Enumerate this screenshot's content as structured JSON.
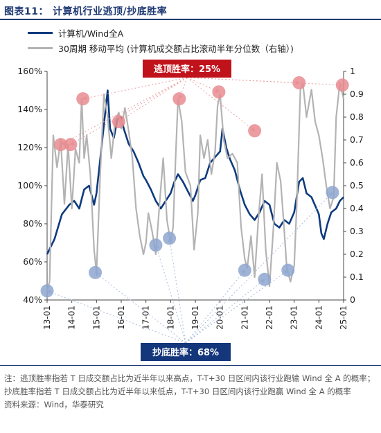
{
  "figure": {
    "label": "图表11：",
    "title": "计算机行业逃顶/抄底胜率",
    "note": "注：逃顶胜率指若 T 日成交额占比为近半年以来高点，T-T+30 日区间内该行业跑输 Wind 全 A 的概率；抄底胜率指若 T 日成交额占比为近半年以来低点，T-T+30 日区间内该行业跑赢 Wind 全 A 的概率",
    "source": "资料来源：Wind，华泰研究"
  },
  "chart_data": {
    "type": "line",
    "x_ticks": [
      "13-01",
      "14-01",
      "15-01",
      "16-01",
      "17-01",
      "18-01",
      "19-01",
      "20-01",
      "21-01",
      "22-01",
      "23-01",
      "24-01",
      "25-01"
    ],
    "y_left": {
      "min": 0.4,
      "max": 1.6,
      "ticks": [
        "40%",
        "60%",
        "80%",
        "100%",
        "120%",
        "140%",
        "160%"
      ]
    },
    "y_right": {
      "min": 0,
      "max": 1,
      "ticks": [
        "0",
        "0.1",
        "0.2",
        "0.3",
        "0.4",
        "0.5",
        "0.6",
        "0.7",
        "0.8",
        "0.9",
        "1"
      ]
    },
    "series": [
      {
        "name": "计算机/Wind全A",
        "axis": "left",
        "color": "#0d3a7e",
        "points": [
          [
            2013.0,
            0.64
          ],
          [
            2013.3,
            0.72
          ],
          [
            2013.6,
            0.85
          ],
          [
            2013.9,
            0.9
          ],
          [
            2014.1,
            0.92
          ],
          [
            2014.3,
            0.88
          ],
          [
            2014.5,
            0.98
          ],
          [
            2014.7,
            1.0
          ],
          [
            2014.9,
            0.9
          ],
          [
            2015.0,
            0.96
          ],
          [
            2015.2,
            1.2
          ],
          [
            2015.35,
            1.38
          ],
          [
            2015.45,
            1.5
          ],
          [
            2015.55,
            1.3
          ],
          [
            2015.7,
            1.25
          ],
          [
            2015.85,
            1.35
          ],
          [
            2016.0,
            1.36
          ],
          [
            2016.1,
            1.3
          ],
          [
            2016.3,
            1.22
          ],
          [
            2016.5,
            1.18
          ],
          [
            2016.7,
            1.12
          ],
          [
            2016.9,
            1.05
          ],
          [
            2017.0,
            1.03
          ],
          [
            2017.2,
            0.98
          ],
          [
            2017.4,
            0.92
          ],
          [
            2017.6,
            0.88
          ],
          [
            2017.8,
            0.92
          ],
          [
            2018.0,
            0.96
          ],
          [
            2018.15,
            1.02
          ],
          [
            2018.3,
            1.06
          ],
          [
            2018.5,
            1.02
          ],
          [
            2018.7,
            0.97
          ],
          [
            2018.9,
            0.92
          ],
          [
            2019.0,
            0.95
          ],
          [
            2019.2,
            1.03
          ],
          [
            2019.4,
            1.04
          ],
          [
            2019.6,
            1.12
          ],
          [
            2019.8,
            1.15
          ],
          [
            2020.0,
            1.18
          ],
          [
            2020.1,
            1.3
          ],
          [
            2020.25,
            1.2
          ],
          [
            2020.4,
            1.14
          ],
          [
            2020.6,
            1.08
          ],
          [
            2020.8,
            0.98
          ],
          [
            2021.0,
            0.9
          ],
          [
            2021.2,
            0.85
          ],
          [
            2021.4,
            0.82
          ],
          [
            2021.6,
            0.86
          ],
          [
            2021.8,
            0.92
          ],
          [
            2022.0,
            0.9
          ],
          [
            2022.2,
            0.8
          ],
          [
            2022.4,
            0.78
          ],
          [
            2022.6,
            0.82
          ],
          [
            2022.8,
            0.8
          ],
          [
            2023.0,
            0.86
          ],
          [
            2023.2,
            1.02
          ],
          [
            2023.35,
            1.04
          ],
          [
            2023.5,
            0.96
          ],
          [
            2023.7,
            0.94
          ],
          [
            2023.9,
            0.88
          ],
          [
            2024.0,
            0.85
          ],
          [
            2024.1,
            0.75
          ],
          [
            2024.2,
            0.72
          ],
          [
            2024.35,
            0.8
          ],
          [
            2024.5,
            0.86
          ],
          [
            2024.7,
            0.88
          ],
          [
            2024.85,
            0.92
          ],
          [
            2025.0,
            0.94
          ]
        ]
      },
      {
        "name": "30周期 移动平均 (计算机成交额占比滚动半年分位数（右轴）)",
        "axis": "right",
        "color": "#b3b3b3",
        "points": [
          [
            2013.0,
            0.04
          ],
          [
            2013.1,
            0.08
          ],
          [
            2013.25,
            0.72
          ],
          [
            2013.4,
            0.58
          ],
          [
            2013.55,
            0.7
          ],
          [
            2013.7,
            0.42
          ],
          [
            2013.85,
            0.68
          ],
          [
            2014.0,
            0.4
          ],
          [
            2014.15,
            0.66
          ],
          [
            2014.3,
            0.6
          ],
          [
            2014.4,
            0.88
          ],
          [
            2014.5,
            0.62
          ],
          [
            2014.6,
            0.72
          ],
          [
            2014.75,
            0.55
          ],
          [
            2014.9,
            0.22
          ],
          [
            2015.0,
            0.12
          ],
          [
            2015.15,
            0.55
          ],
          [
            2015.3,
            0.9
          ],
          [
            2015.45,
            0.8
          ],
          [
            2015.6,
            0.62
          ],
          [
            2015.75,
            0.78
          ],
          [
            2015.9,
            0.82
          ],
          [
            2016.0,
            0.75
          ],
          [
            2016.15,
            0.84
          ],
          [
            2016.3,
            0.74
          ],
          [
            2016.45,
            0.62
          ],
          [
            2016.6,
            0.4
          ],
          [
            2016.75,
            0.28
          ],
          [
            2016.9,
            0.2
          ],
          [
            2017.0,
            0.25
          ],
          [
            2017.1,
            0.38
          ],
          [
            2017.25,
            0.3
          ],
          [
            2017.4,
            0.2
          ],
          [
            2017.55,
            0.42
          ],
          [
            2017.7,
            0.62
          ],
          [
            2017.85,
            0.35
          ],
          [
            2018.0,
            0.25
          ],
          [
            2018.1,
            0.32
          ],
          [
            2018.2,
            0.62
          ],
          [
            2018.3,
            0.88
          ],
          [
            2018.45,
            0.78
          ],
          [
            2018.6,
            0.56
          ],
          [
            2018.8,
            0.5
          ],
          [
            2018.95,
            0.22
          ],
          [
            2019.1,
            0.38
          ],
          [
            2019.2,
            0.72
          ],
          [
            2019.35,
            0.62
          ],
          [
            2019.5,
            0.7
          ],
          [
            2019.65,
            0.55
          ],
          [
            2019.8,
            0.65
          ],
          [
            2019.9,
            0.85
          ],
          [
            2020.0,
            0.9
          ],
          [
            2020.15,
            0.7
          ],
          [
            2020.3,
            0.62
          ],
          [
            2020.5,
            0.64
          ],
          [
            2020.7,
            0.6
          ],
          [
            2020.85,
            0.32
          ],
          [
            2021.0,
            0.18
          ],
          [
            2021.1,
            0.14
          ],
          [
            2021.25,
            0.28
          ],
          [
            2021.4,
            0.1
          ],
          [
            2021.55,
            0.35
          ],
          [
            2021.7,
            0.55
          ],
          [
            2021.85,
            0.22
          ],
          [
            2022.0,
            0.06
          ],
          [
            2022.15,
            0.3
          ],
          [
            2022.3,
            0.6
          ],
          [
            2022.45,
            0.52
          ],
          [
            2022.55,
            0.38
          ],
          [
            2022.7,
            0.14
          ],
          [
            2022.85,
            0.08
          ],
          [
            2023.0,
            0.15
          ],
          [
            2023.1,
            0.4
          ],
          [
            2023.25,
            0.92
          ],
          [
            2023.35,
            0.95
          ],
          [
            2023.5,
            0.8
          ],
          [
            2023.7,
            0.92
          ],
          [
            2023.85,
            0.78
          ],
          [
            2024.0,
            0.72
          ],
          [
            2024.15,
            0.62
          ],
          [
            2024.3,
            0.5
          ],
          [
            2024.45,
            0.4
          ],
          [
            2024.6,
            0.45
          ],
          [
            2024.7,
            0.8
          ],
          [
            2024.85,
            0.95
          ],
          [
            2025.0,
            0.88
          ]
        ]
      }
    ],
    "top_markers": [
      [
        2013.55,
        0.68
      ],
      [
        2013.95,
        0.68
      ],
      [
        2014.45,
        0.88
      ],
      [
        2015.9,
        0.78
      ],
      [
        2018.35,
        0.88
      ],
      [
        2019.95,
        0.91
      ],
      [
        2021.4,
        0.74
      ],
      [
        2023.2,
        0.95
      ],
      [
        2024.95,
        0.94
      ]
    ],
    "bottom_markers": [
      [
        2013.0,
        0.04
      ],
      [
        2014.95,
        0.12
      ],
      [
        2017.4,
        0.24
      ],
      [
        2017.95,
        0.27
      ],
      [
        2021.0,
        0.13
      ],
      [
        2021.8,
        0.09
      ],
      [
        2022.75,
        0.13
      ],
      [
        2024.55,
        0.47
      ]
    ],
    "annotations": {
      "top": "逃顶胜率：25%",
      "bottom": "抄底胜率：68%"
    },
    "colors": {
      "navy": "#0d3a7e",
      "gray": "#b3b3b3",
      "top_box": "#c0121b",
      "bottom_box": "#14367b",
      "top_marker": "#e88c90",
      "bottom_marker": "#8ea6cf"
    }
  }
}
